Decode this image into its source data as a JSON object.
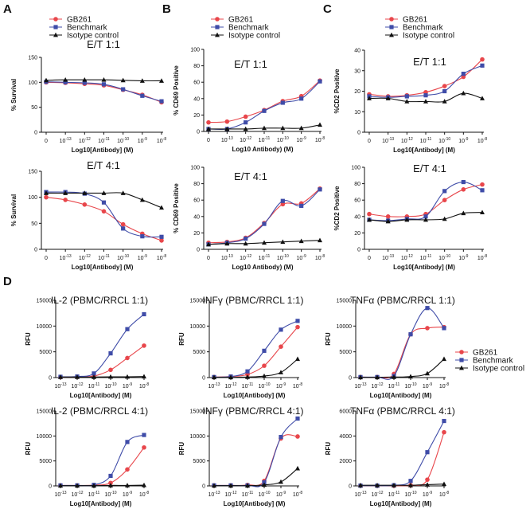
{
  "panel_letters": [
    "A",
    "B",
    "C",
    "D"
  ],
  "legend": {
    "entries": [
      {
        "name": "GB261",
        "color": "#e8464b",
        "marker": "circle"
      },
      {
        "name": "Benchmark",
        "color": "#3f4ca8",
        "marker": "square"
      },
      {
        "name": "Isotype control",
        "color": "#111111",
        "marker": "triangle"
      }
    ]
  },
  "chart_data": [
    {
      "id": "A1",
      "panel": "A",
      "type": "line",
      "title": "E/T 1:1",
      "xlabel": "Log10[Antibody] (M)",
      "ylabel": "% Survival",
      "xticks": [
        "0",
        "10-13",
        "10-12",
        "10-11",
        "10-10",
        "10-9",
        "10-8"
      ],
      "yticks": [
        0,
        50,
        100,
        150
      ],
      "ylim": [
        0,
        150
      ],
      "series": [
        {
          "name": "GB261",
          "values": [
            100,
            99,
            97,
            94,
            85,
            75,
            60
          ]
        },
        {
          "name": "Benchmark",
          "values": [
            101,
            100,
            99,
            96,
            86,
            73,
            62
          ]
        },
        {
          "name": "Isotype control",
          "values": [
            104,
            105,
            105,
            105,
            104,
            103,
            103
          ]
        }
      ]
    },
    {
      "id": "A2",
      "panel": "A",
      "type": "line",
      "title": "E/T 4:1",
      "xlabel": "Log10[Antibody] (M)",
      "ylabel": "% Survival",
      "xticks": [
        "0",
        "10-13",
        "10-12",
        "10-11",
        "10-10",
        "10-9",
        "10-8"
      ],
      "yticks": [
        0,
        50,
        100,
        150
      ],
      "ylim": [
        0,
        150
      ],
      "series": [
        {
          "name": "GB261",
          "values": [
            100,
            95,
            86,
            73,
            48,
            30,
            17
          ]
        },
        {
          "name": "Benchmark",
          "values": [
            110,
            110,
            107,
            90,
            40,
            25,
            24
          ]
        },
        {
          "name": "Isotype control",
          "values": [
            108,
            108,
            108,
            108,
            108,
            95,
            80
          ]
        }
      ]
    },
    {
      "id": "B1",
      "panel": "B",
      "type": "line",
      "title": "E/T 1:1",
      "xlabel": "Log10 Antibody) (M)",
      "ylabel": "% CD69 Positive",
      "xticks": [
        "0",
        "10-13",
        "10-12",
        "10-11",
        "10-10",
        "10-9",
        "10-8"
      ],
      "yticks": [
        0,
        20,
        40,
        60,
        80,
        100
      ],
      "ylim": [
        0,
        100
      ],
      "series": [
        {
          "name": "GB261",
          "values": [
            11,
            12,
            18,
            26,
            37,
            43,
            62
          ]
        },
        {
          "name": "Benchmark",
          "values": [
            3,
            3,
            11,
            25,
            35,
            40,
            61
          ]
        },
        {
          "name": "Isotype control",
          "values": [
            3,
            3,
            3,
            4,
            4,
            4,
            8
          ]
        }
      ]
    },
    {
      "id": "B2",
      "panel": "B",
      "type": "line",
      "title": "E/T 4:1",
      "xlabel": "Log10 Antibody) (M)",
      "ylabel": "% CD69 Positive",
      "xticks": [
        "0",
        "10-13",
        "10-12",
        "10-11",
        "10-10",
        "10-9",
        "10-8"
      ],
      "yticks": [
        0,
        20,
        40,
        60,
        80,
        100
      ],
      "ylim": [
        0,
        100
      ],
      "series": [
        {
          "name": "GB261",
          "values": [
            8,
            9,
            14,
            32,
            55,
            56,
            74
          ]
        },
        {
          "name": "Benchmark",
          "values": [
            6,
            8,
            13,
            31,
            59,
            53,
            73
          ]
        },
        {
          "name": "Isotype control",
          "values": [
            6,
            7,
            7,
            8,
            9,
            10,
            11
          ]
        }
      ]
    },
    {
      "id": "C1",
      "panel": "C",
      "type": "line",
      "title": "E/T 1:1",
      "xlabel": "Log10[Antibody] (M)",
      "ylabel": "%CD2 Positive",
      "xticks": [
        "0",
        "10-13",
        "10-12",
        "10-11",
        "10-10",
        "10-9",
        "10-8"
      ],
      "yticks": [
        0,
        10,
        20,
        30,
        40
      ],
      "ylim": [
        0,
        40
      ],
      "series": [
        {
          "name": "GB261",
          "values": [
            18.5,
            17.5,
            18,
            19.5,
            22.5,
            27,
            35.5
          ]
        },
        {
          "name": "Benchmark",
          "values": [
            17.5,
            17,
            17.5,
            18,
            20,
            28.5,
            32.5
          ]
        },
        {
          "name": "Isotype control",
          "values": [
            16.5,
            16.5,
            15,
            15,
            15,
            19,
            16.5
          ]
        }
      ]
    },
    {
      "id": "C2",
      "panel": "C",
      "type": "line",
      "title": "E/T 4:1",
      "xlabel": "Log10[Antibody] (M)",
      "ylabel": "%CD2 Positive",
      "xticks": [
        "0",
        "10-13",
        "10-12",
        "10-11",
        "10-10",
        "10-9",
        "10-8"
      ],
      "yticks": [
        0,
        20,
        40,
        60,
        80,
        100
      ],
      "ylim": [
        0,
        100
      ],
      "series": [
        {
          "name": "GB261",
          "values": [
            43,
            40,
            40,
            43,
            60,
            73,
            79
          ]
        },
        {
          "name": "Benchmark",
          "values": [
            36,
            35,
            37,
            40,
            71,
            82,
            72
          ]
        },
        {
          "name": "Isotype control",
          "values": [
            36,
            34,
            36,
            36,
            37,
            44,
            45
          ]
        }
      ]
    },
    {
      "id": "D1",
      "panel": "D",
      "type": "line",
      "title": "IL-2 (PBMC/RRCL 1:1)",
      "xlabel": "Log10[Antibody] (M)",
      "ylabel": "RFU",
      "xticks": [
        "10-13",
        "10-12",
        "10-11",
        "10-10",
        "10-9",
        "10-8"
      ],
      "yticks": [
        0,
        5000,
        10000,
        15000
      ],
      "ylim": [
        0,
        15000
      ],
      "series": [
        {
          "name": "GB261",
          "values": [
            100,
            150,
            300,
            1500,
            3800,
            6200
          ]
        },
        {
          "name": "Benchmark",
          "values": [
            150,
            200,
            800,
            4700,
            9400,
            12300
          ]
        },
        {
          "name": "Isotype control",
          "values": [
            100,
            100,
            100,
            150,
            150,
            200
          ]
        }
      ]
    },
    {
      "id": "D2",
      "panel": "D",
      "type": "line",
      "title": "INFγ (PBMC/RRCL 1:1)",
      "xlabel": "Log10[Antibody] (M)",
      "ylabel": "RFU",
      "xticks": [
        "10-13",
        "10-12",
        "10-11",
        "10-10",
        "10-9",
        "10-8"
      ],
      "yticks": [
        0,
        5000,
        10000,
        15000
      ],
      "ylim": [
        0,
        15000
      ],
      "series": [
        {
          "name": "GB261",
          "values": [
            100,
            200,
            600,
            2300,
            6000,
            9800
          ]
        },
        {
          "name": "Benchmark",
          "values": [
            100,
            200,
            1200,
            5200,
            9300,
            11000
          ]
        },
        {
          "name": "Isotype control",
          "values": [
            50,
            50,
            100,
            300,
            1000,
            3600
          ]
        }
      ]
    },
    {
      "id": "D3",
      "panel": "D",
      "type": "line",
      "title": "TNFα (PBMC/RRCL 1:1)",
      "xlabel": "Log10[Antibody] (M)",
      "ylabel": "RFU",
      "xticks": [
        "10-13",
        "10-12",
        "10-11",
        "10-10",
        "10-9",
        "10-8"
      ],
      "yticks": [
        0,
        5000,
        10000,
        15000
      ],
      "ylim": [
        0,
        15000
      ],
      "series": [
        {
          "name": "GB261",
          "values": [
            100,
            100,
            700,
            8400,
            9600,
            9800
          ]
        },
        {
          "name": "Benchmark",
          "values": [
            100,
            100,
            300,
            8400,
            13500,
            9600
          ]
        },
        {
          "name": "Isotype control",
          "values": [
            50,
            50,
            100,
            200,
            800,
            3600
          ]
        }
      ]
    },
    {
      "id": "D4",
      "panel": "D",
      "type": "line",
      "title": "IL-2 (PBMC/RRCL 4:1)",
      "xlabel": "Log10[Antibody] (M)",
      "ylabel": "RFU",
      "xticks": [
        "10-13",
        "10-12",
        "10-11",
        "10-10",
        "10-9",
        "10-8"
      ],
      "yticks": [
        0,
        5000,
        10000,
        15000
      ],
      "ylim": [
        0,
        15000
      ],
      "series": [
        {
          "name": "GB261",
          "values": [
            100,
            100,
            150,
            600,
            3300,
            7700
          ]
        },
        {
          "name": "Benchmark",
          "values": [
            100,
            100,
            200,
            2000,
            8800,
            10200
          ]
        },
        {
          "name": "Isotype control",
          "values": [
            50,
            50,
            50,
            100,
            100,
            150
          ]
        }
      ]
    },
    {
      "id": "D5",
      "panel": "D",
      "type": "line",
      "title": "INFγ (PBMC/RRCL 4:1)",
      "xlabel": "Log10[Antibody] (M)",
      "ylabel": "RFU",
      "xticks": [
        "10-13",
        "10-12",
        "10-11",
        "10-10",
        "10-9",
        "10-8"
      ],
      "yticks": [
        0,
        5000,
        10000,
        15000
      ],
      "ylim": [
        0,
        15000
      ],
      "series": [
        {
          "name": "GB261",
          "values": [
            100,
            100,
            200,
            1000,
            9500,
            9900
          ]
        },
        {
          "name": "Benchmark",
          "values": [
            100,
            100,
            100,
            700,
            9800,
            13500
          ]
        },
        {
          "name": "Isotype control",
          "values": [
            50,
            50,
            50,
            200,
            800,
            3500
          ]
        }
      ]
    },
    {
      "id": "D6",
      "panel": "D",
      "type": "line",
      "title": "TNFα (PBMC/RRCL 4:1)",
      "xlabel": "Log10[Antibody] (M)",
      "ylabel": "RFU",
      "xticks": [
        "10-13",
        "10-12",
        "10-11",
        "10-10",
        "10-9",
        "10-8"
      ],
      "yticks": [
        0,
        2000,
        4000,
        6000
      ],
      "ylim": [
        0,
        6000
      ],
      "series": [
        {
          "name": "GB261",
          "values": [
            20,
            20,
            20,
            50,
            500,
            4300
          ]
        },
        {
          "name": "Benchmark",
          "values": [
            20,
            20,
            50,
            400,
            2700,
            5200
          ]
        },
        {
          "name": "Isotype control",
          "values": [
            50,
            50,
            50,
            50,
            100,
            150
          ]
        }
      ]
    }
  ]
}
